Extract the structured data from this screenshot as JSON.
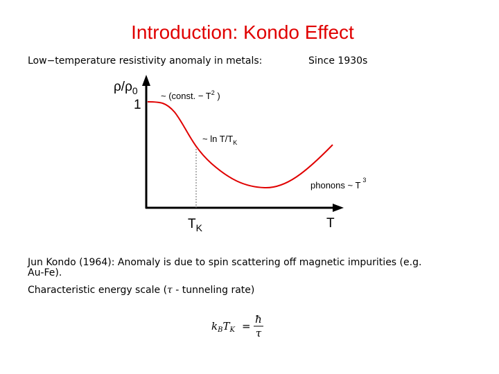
{
  "title": "Introduction: Kondo Effect",
  "intro": {
    "text": "Low−temperature resistivity anomaly in metals:",
    "since": "Since 1930s"
  },
  "diagram": {
    "y_axis_label": {
      "base": "ρ/ρ",
      "sub": "0"
    },
    "y_tick": "1",
    "low_t_annotation": {
      "before": "~ (const. − T",
      "sup": "2",
      "after": " )"
    },
    "kondo_annotation": {
      "base": "~ ln T/T",
      "sub": "K"
    },
    "phonon_annotation": {
      "base": "phonons  ~ T",
      "sup": "3"
    },
    "x_tick": {
      "base": "T",
      "sub": "K"
    },
    "x_axis_label": "T"
  },
  "paragraphs": [
    {
      "lines": [
        "Jun Kondo (1964): Anomaly is due to spin scattering off magnetic impurities (e.g.",
        "Au-Fe)."
      ]
    },
    {
      "lines": [
        "Characteristic energy scale (",
        "τ",
        " - tunneling rate)"
      ]
    }
  ],
  "formula": {
    "k": "k",
    "k_sub": "B",
    "t": "T",
    "t_sub": "K",
    "equals": "=",
    "numerator": "ħ",
    "denominator": "τ"
  }
}
